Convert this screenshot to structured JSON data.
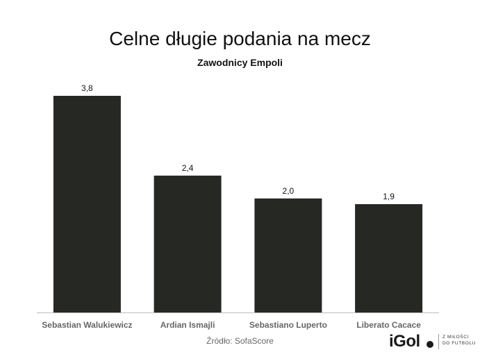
{
  "chart_data": {
    "type": "bar",
    "title": "Celne długie podania na mecz",
    "subtitle": "Zawodnicy Empoli",
    "categories": [
      "Sebastian Walukiewicz",
      "Ardian Ismajli",
      "Sebastiano Luperto",
      "Liberato Cacace"
    ],
    "values": [
      3.8,
      2.4,
      2.0,
      1.9
    ],
    "value_labels": [
      "3,8",
      "2,4",
      "2,0",
      "1,9"
    ],
    "ylim": [
      0,
      3.8
    ],
    "grid": false,
    "legend": "none",
    "bar_color": "#262824",
    "baseline_color": "#bbbbbb",
    "category_label_color": "#666666"
  },
  "footer": {
    "source": "Źródło: SofaScore"
  },
  "brand": {
    "name": "iGol",
    "tagline_line1": "Z MIŁOŚCI",
    "tagline_line2": "DO FUTBOLU",
    "logo_icon": "igol-logo-icon"
  }
}
